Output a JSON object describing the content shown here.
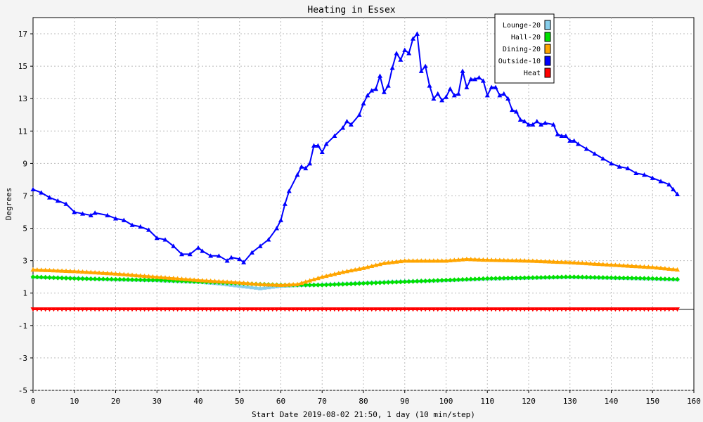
{
  "chart_data": {
    "type": "line",
    "title": "Heating in Essex",
    "xlabel": "Start Date 2019-08-02 21:50, 1 day (10 min/step)",
    "ylabel": "Degrees",
    "xlim": [
      0,
      160
    ],
    "ylim": [
      -5,
      18
    ],
    "x_ticks": [
      "0",
      "10",
      "20",
      "30",
      "40",
      "50",
      "60",
      "70",
      "80",
      "90",
      "100",
      "110",
      "120",
      "130",
      "140",
      "150",
      "160"
    ],
    "y_ticks": [
      "-5",
      "-3",
      "-1",
      "1",
      "3",
      "5",
      "7",
      "9",
      "11",
      "13",
      "15",
      "17"
    ],
    "grid": true,
    "legend_position": "top-right",
    "series": [
      {
        "name": "Lounge-20",
        "color": "#87ceeb",
        "marker": "triangle-up",
        "points": [
          [
            0,
            2.0
          ],
          [
            10,
            1.95
          ],
          [
            20,
            1.85
          ],
          [
            30,
            1.8
          ],
          [
            40,
            1.7
          ],
          [
            45,
            1.6
          ],
          [
            50,
            1.45
          ],
          [
            55,
            1.3
          ],
          [
            60,
            1.45
          ],
          [
            65,
            1.5
          ],
          [
            70,
            1.55
          ],
          [
            80,
            1.65
          ],
          [
            90,
            1.75
          ],
          [
            100,
            1.8
          ],
          [
            110,
            1.9
          ],
          [
            120,
            1.95
          ],
          [
            130,
            2.0
          ],
          [
            140,
            1.95
          ],
          [
            150,
            1.9
          ],
          [
            156,
            1.85
          ]
        ]
      },
      {
        "name": "Hall-20",
        "color": "#00e000",
        "marker": "diamond",
        "points": [
          [
            0,
            2.0
          ],
          [
            10,
            1.9
          ],
          [
            20,
            1.85
          ],
          [
            30,
            1.8
          ],
          [
            40,
            1.7
          ],
          [
            50,
            1.6
          ],
          [
            55,
            1.55
          ],
          [
            60,
            1.5
          ],
          [
            65,
            1.5
          ],
          [
            70,
            1.5
          ],
          [
            80,
            1.6
          ],
          [
            90,
            1.7
          ],
          [
            100,
            1.8
          ],
          [
            110,
            1.9
          ],
          [
            120,
            1.95
          ],
          [
            130,
            2.0
          ],
          [
            140,
            1.95
          ],
          [
            150,
            1.9
          ],
          [
            156,
            1.85
          ]
        ]
      },
      {
        "name": "Dining-20",
        "color": "#ffa500",
        "marker": "triangle-up",
        "points": [
          [
            0,
            2.45
          ],
          [
            10,
            2.35
          ],
          [
            20,
            2.2
          ],
          [
            30,
            2.0
          ],
          [
            40,
            1.8
          ],
          [
            50,
            1.65
          ],
          [
            55,
            1.55
          ],
          [
            60,
            1.5
          ],
          [
            64,
            1.55
          ],
          [
            70,
            2.0
          ],
          [
            75,
            2.3
          ],
          [
            80,
            2.55
          ],
          [
            85,
            2.85
          ],
          [
            90,
            3.0
          ],
          [
            100,
            3.0
          ],
          [
            105,
            3.1
          ],
          [
            110,
            3.05
          ],
          [
            120,
            3.0
          ],
          [
            130,
            2.9
          ],
          [
            140,
            2.75
          ],
          [
            150,
            2.6
          ],
          [
            156,
            2.45
          ]
        ]
      },
      {
        "name": "Outside-10",
        "color": "#0000ff",
        "marker": "triangle-up",
        "points": [
          [
            0,
            7.4
          ],
          [
            2,
            7.2
          ],
          [
            4,
            6.9
          ],
          [
            6,
            6.7
          ],
          [
            8,
            6.5
          ],
          [
            10,
            6.0
          ],
          [
            12,
            5.9
          ],
          [
            14,
            5.8
          ],
          [
            15,
            5.95
          ],
          [
            18,
            5.8
          ],
          [
            20,
            5.6
          ],
          [
            22,
            5.5
          ],
          [
            24,
            5.2
          ],
          [
            26,
            5.1
          ],
          [
            28,
            4.9
          ],
          [
            30,
            4.4
          ],
          [
            32,
            4.3
          ],
          [
            34,
            3.9
          ],
          [
            36,
            3.4
          ],
          [
            38,
            3.4
          ],
          [
            40,
            3.8
          ],
          [
            41,
            3.6
          ],
          [
            43,
            3.3
          ],
          [
            45,
            3.3
          ],
          [
            47,
            3.0
          ],
          [
            48,
            3.2
          ],
          [
            50,
            3.1
          ],
          [
            51,
            2.9
          ],
          [
            53,
            3.5
          ],
          [
            55,
            3.9
          ],
          [
            57,
            4.3
          ],
          [
            59,
            5.0
          ],
          [
            60,
            5.5
          ],
          [
            61,
            6.5
          ],
          [
            62,
            7.3
          ],
          [
            64,
            8.3
          ],
          [
            65,
            8.8
          ],
          [
            66,
            8.7
          ],
          [
            67,
            9.0
          ],
          [
            68,
            10.1
          ],
          [
            69,
            10.1
          ],
          [
            70,
            9.7
          ],
          [
            71,
            10.2
          ],
          [
            73,
            10.7
          ],
          [
            75,
            11.2
          ],
          [
            76,
            11.6
          ],
          [
            77,
            11.4
          ],
          [
            79,
            12.0
          ],
          [
            80,
            12.7
          ],
          [
            81,
            13.2
          ],
          [
            82,
            13.5
          ],
          [
            83,
            13.6
          ],
          [
            84,
            14.4
          ],
          [
            85,
            13.4
          ],
          [
            86,
            13.8
          ],
          [
            87,
            14.9
          ],
          [
            88,
            15.8
          ],
          [
            89,
            15.4
          ],
          [
            90,
            16.0
          ],
          [
            91,
            15.8
          ],
          [
            92,
            16.7
          ],
          [
            93,
            17.0
          ],
          [
            94,
            14.7
          ],
          [
            95,
            15.0
          ],
          [
            96,
            13.8
          ],
          [
            97,
            13.0
          ],
          [
            98,
            13.3
          ],
          [
            99,
            12.9
          ],
          [
            100,
            13.1
          ],
          [
            101,
            13.6
          ],
          [
            102,
            13.2
          ],
          [
            103,
            13.3
          ],
          [
            104,
            14.7
          ],
          [
            105,
            13.7
          ],
          [
            106,
            14.2
          ],
          [
            107,
            14.2
          ],
          [
            108,
            14.3
          ],
          [
            109,
            14.1
          ],
          [
            110,
            13.2
          ],
          [
            111,
            13.7
          ],
          [
            112,
            13.7
          ],
          [
            113,
            13.2
          ],
          [
            114,
            13.3
          ],
          [
            115,
            13.0
          ],
          [
            116,
            12.3
          ],
          [
            117,
            12.2
          ],
          [
            118,
            11.7
          ],
          [
            119,
            11.6
          ],
          [
            120,
            11.4
          ],
          [
            121,
            11.4
          ],
          [
            122,
            11.6
          ],
          [
            123,
            11.4
          ],
          [
            124,
            11.5
          ],
          [
            126,
            11.4
          ],
          [
            127,
            10.8
          ],
          [
            128,
            10.7
          ],
          [
            129,
            10.7
          ],
          [
            130,
            10.4
          ],
          [
            131,
            10.4
          ],
          [
            132,
            10.2
          ],
          [
            134,
            9.9
          ],
          [
            136,
            9.6
          ],
          [
            138,
            9.3
          ],
          [
            140,
            9.0
          ],
          [
            142,
            8.8
          ],
          [
            144,
            8.7
          ],
          [
            146,
            8.4
          ],
          [
            148,
            8.3
          ],
          [
            150,
            8.1
          ],
          [
            152,
            7.9
          ],
          [
            154,
            7.7
          ],
          [
            155,
            7.4
          ],
          [
            156,
            7.1
          ]
        ]
      },
      {
        "name": "Heat",
        "color": "#ff0000",
        "marker": "triangle-down",
        "points": [
          [
            0,
            0.0
          ],
          [
            156,
            0.0
          ]
        ]
      }
    ]
  }
}
